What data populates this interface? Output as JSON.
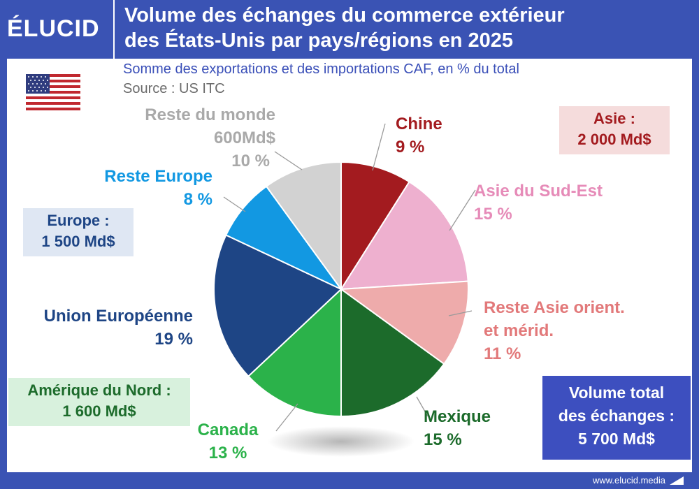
{
  "brand": {
    "logo": "ÉLUCID",
    "footer": "www.elucid.media"
  },
  "header": {
    "title_line1": "Volume des échanges du commerce extérieur",
    "title_line2": "des États-Unis par pays/régions en 2025"
  },
  "subtitle": "Somme des exportations et des importations CAF, en % du total",
  "source": "Source : US ITC",
  "flag_icon": "us-flag-icon",
  "chart_data": {
    "type": "pie",
    "unit": "%",
    "start_angle_deg": 0,
    "direction": "clockwise",
    "slices": [
      {
        "name": "Chine",
        "value": 9,
        "value_label": "9 %",
        "color": "#a31b1f"
      },
      {
        "name": "Asie du Sud-Est",
        "value": 15,
        "value_label": "15 %",
        "color": "#eeb0cf"
      },
      {
        "name": "Reste Asie orient. et mérid.",
        "name_line1": "Reste Asie orient.",
        "name_line2": "et mérid.",
        "value": 11,
        "value_label": "11 %",
        "color": "#eeabab"
      },
      {
        "name": "Mexique",
        "value": 15,
        "value_label": "15 %",
        "color": "#1c6b2b"
      },
      {
        "name": "Canada",
        "value": 13,
        "value_label": "13 %",
        "color": "#2bb24a"
      },
      {
        "name": "Union Européenne",
        "value": 19,
        "value_label": "19 %",
        "color": "#1e4585"
      },
      {
        "name": "Reste Europe",
        "value": 8,
        "value_label": "8 %",
        "color": "#1298e2"
      },
      {
        "name": "Reste du monde",
        "amount": "600Md$",
        "value": 10,
        "value_label": "10 %",
        "color": "#d2d2d2"
      }
    ]
  },
  "regions": {
    "asie": {
      "label": "Asie :",
      "amount": "2 000 Md$",
      "bg": "#f5dcdc",
      "color": "#a31b1f"
    },
    "europe": {
      "label": "Europe :",
      "amount": "1 500 Md$",
      "bg": "#dfe7f3",
      "color": "#1e4585"
    },
    "amerique": {
      "label": "Amérique du Nord :",
      "amount": "1 600 Md$",
      "bg": "#d8f1dd",
      "color": "#1c6b2b"
    }
  },
  "total": {
    "line1": "Volume total",
    "line2": "des échanges :",
    "amount": "5 700 Md$",
    "bg": "#3d4fbf",
    "color": "#ffffff"
  },
  "label_colors": {
    "chine": "#a31b1f",
    "sud_est": "#e68bb8",
    "reste_asie": "#e2797a",
    "mexique": "#1c6b2b",
    "canada": "#2bb24a",
    "ue": "#1e4585",
    "reste_europe": "#1298e2",
    "reste_monde": "#a9a9a9"
  }
}
